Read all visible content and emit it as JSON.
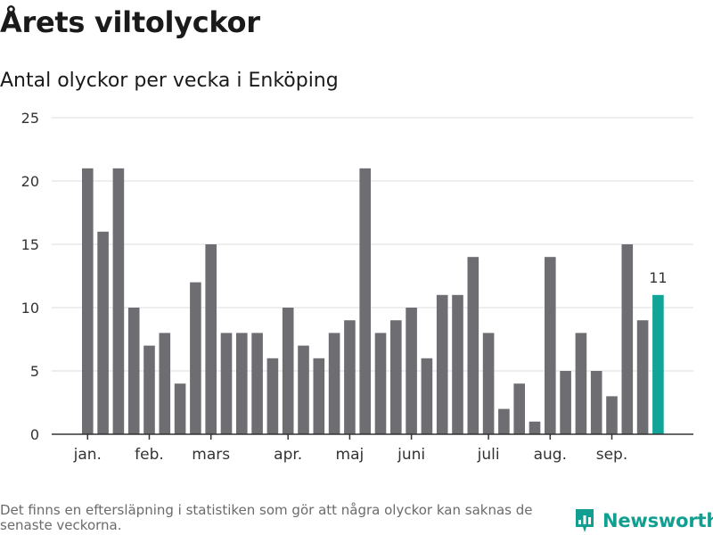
{
  "title": "Årets viltolyckor",
  "subtitle": "Antal olyckor per vecka i Enköping",
  "footnote": "Det finns en eftersläpning i statistiken som gör att några olyckor kan saknas de senaste veckorna.",
  "brand": {
    "name": "Newsworthy",
    "icon": "newsworthy-logo-icon",
    "color": "#119f91"
  },
  "colors": {
    "bar": "#6e6d72",
    "highlight": "#10a596",
    "grid": "#dedede",
    "axis": "#333333"
  },
  "chart_data": {
    "type": "bar",
    "title": "Antal olyckor per vecka i Enköping",
    "xlabel": "",
    "ylabel": "",
    "ylim": [
      0,
      25
    ],
    "yticks": [
      0,
      5,
      10,
      15,
      20,
      25
    ],
    "grid": true,
    "values": [
      21,
      16,
      21,
      10,
      7,
      8,
      4,
      12,
      15,
      8,
      8,
      8,
      6,
      10,
      7,
      6,
      8,
      9,
      21,
      8,
      9,
      10,
      6,
      11,
      11,
      14,
      8,
      2,
      4,
      1,
      14,
      5,
      8,
      5,
      3,
      15,
      9,
      11
    ],
    "highlight_index": 37,
    "highlight_label": "11",
    "month_labels": [
      {
        "label": "jan.",
        "bar_index": 0
      },
      {
        "label": "feb.",
        "bar_index": 4
      },
      {
        "label": "mars",
        "bar_index": 8
      },
      {
        "label": "apr.",
        "bar_index": 13
      },
      {
        "label": "maj",
        "bar_index": 17
      },
      {
        "label": "juni",
        "bar_index": 21
      },
      {
        "label": "juli",
        "bar_index": 26
      },
      {
        "label": "aug.",
        "bar_index": 30
      },
      {
        "label": "sep.",
        "bar_index": 34
      }
    ]
  }
}
